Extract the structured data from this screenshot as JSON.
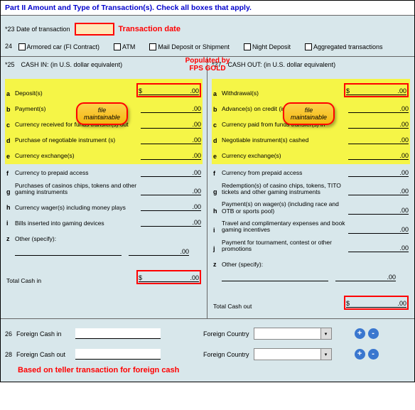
{
  "header": {
    "title": "Part II Amount and Type of Transaction(s). Check all boxes that apply."
  },
  "date": {
    "num": "*23",
    "label": "Date of transaction",
    "annotation": "Transaction date"
  },
  "checks": {
    "num": "24",
    "items": [
      "Armored car (FI Contract)",
      "ATM",
      "Mail Deposit or Shipment",
      "Night Deposit",
      "Aggregated transactions"
    ]
  },
  "populated": {
    "l1": "Populated by",
    "l2": "FPS GOLD"
  },
  "pill": {
    "l1": "file",
    "l2": "maintainable"
  },
  "cashin": {
    "num": "*25",
    "title": "CASH IN: (in U.S. dollar equivalent)",
    "items": [
      {
        "k": "a",
        "label": "Deposit(s)",
        "dollar": "$",
        "val": ".00",
        "hl": true,
        "box": true
      },
      {
        "k": "b",
        "label": "Payment(s)",
        "dollar": "",
        "val": ".00",
        "hl": true
      },
      {
        "k": "c",
        "label": "Currency received for funds transfer(s) out",
        "dollar": "",
        "val": ".00",
        "hl": true
      },
      {
        "k": "d",
        "label": "Purchase of negotiable instrument (s)",
        "dollar": "",
        "val": ".00",
        "hl": true
      },
      {
        "k": "e",
        "label": "Currency exchange(s)",
        "dollar": "",
        "val": ".00",
        "hl": true
      },
      {
        "k": "f",
        "label": "Currency to prepaid access",
        "dollar": "",
        "val": ".00"
      },
      {
        "k": "g",
        "label": "Purchases of casinos chips, tokens and other gaming instruments",
        "dollar": "",
        "val": ".00"
      },
      {
        "k": "h",
        "label": "Currency wager(s) including money plays",
        "dollar": "",
        "val": ".00"
      },
      {
        "k": "i",
        "label": "Bills inserted into gaming devices",
        "dollar": "",
        "val": ".00"
      },
      {
        "k": "z",
        "label": "Other (specify):",
        "dollar": "",
        "val": ".00",
        "other": true
      }
    ],
    "total": {
      "label": "Total Cash in",
      "dollar": "$",
      "val": ".00"
    }
  },
  "cashout": {
    "num": "*27",
    "title": "CASH OUT: (in U.S. dollar equivalent)",
    "items": [
      {
        "k": "a",
        "label": "Withdrawal(s)",
        "dollar": "$",
        "val": ".00",
        "hl": true,
        "box": true
      },
      {
        "k": "b",
        "label": "Advance(s) on credit (including markers)",
        "dollar": "",
        "val": ".00",
        "hl": true
      },
      {
        "k": "c",
        "label": "Currency paid from funds transfer(s) in",
        "dollar": "",
        "val": ".00",
        "hl": true
      },
      {
        "k": "d",
        "label": "Negotiable instrument(s) cashed",
        "dollar": "",
        "val": ".00",
        "hl": true
      },
      {
        "k": "e",
        "label": "Currency exchange(s)",
        "dollar": "",
        "val": ".00",
        "hl": true
      },
      {
        "k": "f",
        "label": "Currency from prepaid access",
        "dollar": "",
        "val": ".00"
      },
      {
        "k": "g",
        "label": "Redemption(s) of casino chips, tokens, TITO tickets and other gaming instruments",
        "dollar": "",
        "val": ".00"
      },
      {
        "k": "h",
        "label": "Payment(s) on wager(s) (including race and OTB or sports pool)",
        "dollar": "",
        "val": ".00"
      },
      {
        "k": "i",
        "label": "Travel and complimentary expenses and book gaming incentives",
        "dollar": "",
        "val": ".00"
      },
      {
        "k": "j",
        "label": "Payment for tournament, contest or other promotions",
        "dollar": "",
        "val": ".00"
      },
      {
        "k": "z",
        "label": "Other (specify):",
        "dollar": "",
        "val": ".00",
        "other": true
      }
    ],
    "total": {
      "label": "Total Cash out",
      "dollar": "$",
      "val": ".00"
    }
  },
  "foreign": {
    "rows": [
      {
        "num": "26",
        "label": "Foreign Cash in",
        "clabel": "Foreign Country"
      },
      {
        "num": "28",
        "label": "Foreign Cash out",
        "clabel": "Foreign Country"
      }
    ],
    "annotation": "Based on teller transaction for foreign cash"
  },
  "btn": {
    "plus": "+",
    "minus": "-"
  }
}
